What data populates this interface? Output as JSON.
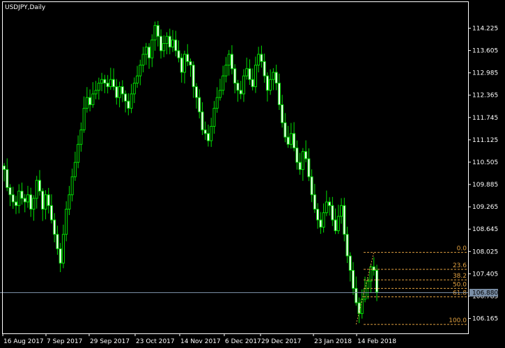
{
  "chart_data": {
    "type": "candlestick",
    "title": "USDJPY,Daily",
    "colors": {
      "background": "#000000",
      "frame": "#ffffff",
      "candle": "#00e000",
      "current_line": "#7a8ea6",
      "current_label_bg": "#7a8ea6",
      "fibo": "#e0a040"
    },
    "ylim": [
      105.75,
      114.95
    ],
    "y_ticks": [
      "114.225",
      "113.605",
      "112.985",
      "112.365",
      "111.745",
      "111.125",
      "110.505",
      "109.885",
      "109.265",
      "108.645",
      "108.025",
      "107.405",
      "106.785",
      "106.165"
    ],
    "x_tick_labels": [
      "16 Aug 2017",
      "7 Sep 2017",
      "29 Sep 2017",
      "23 Oct 2017",
      "14 Nov 2017",
      "6 Dec 2017",
      "29 Dec 2017",
      "23 Jan 2018",
      "14 Feb 2018"
    ],
    "current_price": "106.880",
    "fibonacci": {
      "high": 108.0,
      "low": 106.0,
      "levels": [
        {
          "label": "0.0",
          "ratio": 0.0
        },
        {
          "label": "23.6",
          "ratio": 0.236
        },
        {
          "label": "38.2",
          "ratio": 0.382
        },
        {
          "label": "50.0",
          "ratio": 0.5
        },
        {
          "label": "61.8",
          "ratio": 0.618
        },
        {
          "label": "100.0",
          "ratio": 1.0
        }
      ]
    },
    "closes": [
      110.3,
      109.8,
      109.6,
      109.4,
      109.3,
      109.7,
      109.5,
      109.4,
      109.6,
      109.2,
      109.5,
      110.0,
      109.7,
      109.2,
      109.6,
      109.3,
      108.9,
      108.5,
      108.1,
      107.7,
      108.5,
      109.2,
      109.6,
      110.1,
      110.5,
      111.0,
      111.4,
      112.0,
      112.3,
      112.1,
      112.4,
      112.5,
      112.7,
      112.8,
      112.7,
      112.6,
      112.8,
      112.6,
      112.3,
      112.6,
      112.4,
      112.2,
      112.0,
      112.4,
      112.7,
      112.9,
      113.2,
      113.5,
      113.7,
      113.4,
      113.9,
      114.3,
      114.0,
      113.6,
      113.8,
      114.0,
      113.7,
      113.9,
      113.6,
      113.4,
      113.0,
      113.5,
      113.3,
      113.2,
      112.6,
      112.3,
      111.9,
      111.4,
      111.3,
      111.1,
      111.5,
      112.0,
      112.3,
      112.5,
      112.9,
      113.2,
      113.5,
      113.1,
      112.7,
      112.5,
      112.4,
      112.9,
      113.1,
      112.8,
      112.6,
      113.2,
      113.5,
      113.3,
      112.9,
      112.5,
      112.8,
      113.0,
      112.7,
      112.1,
      111.6,
      111.2,
      111.0,
      111.3,
      110.9,
      110.5,
      110.3,
      110.8,
      110.6,
      110.1,
      109.6,
      109.2,
      108.9,
      108.7,
      109.1,
      109.4,
      109.3,
      108.9,
      108.6,
      109.0,
      109.3,
      108.5,
      107.9,
      107.5,
      107.0,
      106.6,
      106.3,
      106.7,
      107.0,
      107.2,
      107.6,
      107.5,
      106.9
    ]
  }
}
